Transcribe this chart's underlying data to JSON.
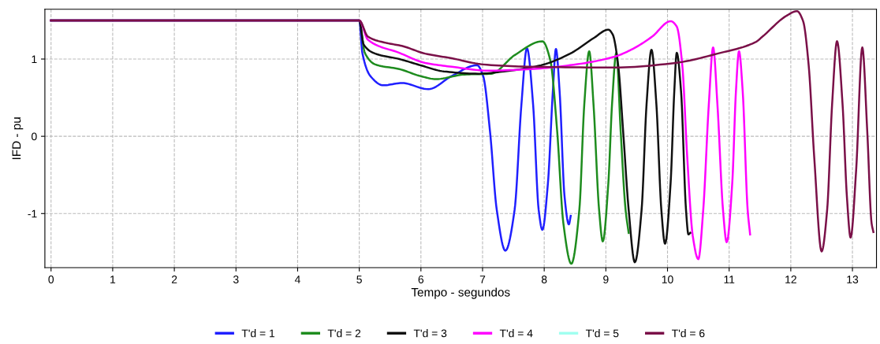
{
  "chart_data": {
    "type": "line",
    "xlabel": "Tempo - segundos",
    "ylabel": "IFD - pu",
    "xlim": [
      -0.1,
      13.39
    ],
    "ylim": [
      -1.7,
      1.644
    ],
    "xticks": [
      0,
      1,
      2,
      3,
      4,
      5,
      6,
      7,
      8,
      9,
      10,
      11,
      12,
      13
    ],
    "yticks": [
      -1,
      0,
      1
    ],
    "grid": true,
    "legend": "bottom",
    "line_style": "solid",
    "marker": "none",
    "series": [
      {
        "name": "T'd = 1",
        "color": "#1f1fff",
        "x": [
          0,
          5,
          5.05,
          5.18,
          5.39,
          5.69,
          6.12,
          6.5,
          6.91,
          7.01,
          7.12,
          7.23,
          7.37,
          7.52,
          7.63,
          7.72,
          7.82,
          7.91,
          7.97,
          8.06,
          8.14,
          8.19,
          8.25,
          8.33,
          8.4,
          8.43
        ],
        "values": [
          1.5,
          1.5,
          1.08,
          0.78,
          0.66,
          0.69,
          0.61,
          0.78,
          0.92,
          0.78,
          0.07,
          -0.95,
          -1.48,
          -0.95,
          0.41,
          1.14,
          0.41,
          -0.95,
          -1.21,
          -0.61,
          0.58,
          1.13,
          0.58,
          -0.78,
          -1.14,
          -1.03
        ]
      },
      {
        "name": "T'd = 2",
        "color": "#1e8c1e",
        "x": [
          0,
          5,
          5.09,
          5.26,
          5.65,
          5.99,
          6.24,
          6.71,
          7.14,
          7.52,
          7.97,
          8.1,
          8.21,
          8.31,
          8.44,
          8.57,
          8.65,
          8.73,
          8.8,
          8.89,
          8.95,
          9.04,
          9.1,
          9.17,
          9.24,
          9.32,
          9.37
        ],
        "values": [
          1.5,
          1.5,
          1.08,
          0.93,
          0.87,
          0.78,
          0.74,
          0.8,
          0.81,
          1.05,
          1.23,
          0.98,
          0.07,
          -1.12,
          -1.65,
          -0.95,
          0.41,
          1.1,
          0.41,
          -0.95,
          -1.36,
          -0.61,
          0.41,
          1.08,
          0.07,
          -0.95,
          -1.25
        ]
      },
      {
        "name": "T'd = 3",
        "color": "#111111",
        "x": [
          0,
          5,
          5.07,
          5.26,
          5.65,
          5.99,
          6.37,
          6.93,
          7.35,
          7.95,
          8.42,
          8.8,
          9.04,
          9.11,
          9.2,
          9.28,
          9.37,
          9.47,
          9.58,
          9.66,
          9.74,
          9.82,
          9.9,
          9.96,
          10.05,
          10.11,
          10.15,
          10.22,
          10.3,
          10.34,
          10.37
        ],
        "values": [
          1.5,
          1.5,
          1.19,
          1.07,
          1.0,
          0.92,
          0.84,
          0.81,
          0.84,
          0.92,
          1.07,
          1.27,
          1.38,
          1.32,
          0.92,
          0.07,
          -0.95,
          -1.63,
          -0.95,
          0.41,
          1.12,
          0.41,
          -0.95,
          -1.39,
          -0.61,
          0.58,
          1.08,
          0.58,
          -0.95,
          -1.27,
          -1.25
        ]
      },
      {
        "name": "T'd = 4",
        "color": "#ff00ff",
        "x": [
          0,
          5,
          5.14,
          5.65,
          6.07,
          6.5,
          7.1,
          7.78,
          8.42,
          9.14,
          9.41,
          9.75,
          10.05,
          10.15,
          10.24,
          10.32,
          10.41,
          10.5,
          10.58,
          10.67,
          10.74,
          10.81,
          10.9,
          10.96,
          11.05,
          11.11,
          11.16,
          11.22,
          11.3,
          11.34
        ],
        "values": [
          1.5,
          1.5,
          1.25,
          1.08,
          0.95,
          0.9,
          0.85,
          0.87,
          0.92,
          1.03,
          1.12,
          1.29,
          1.49,
          1.42,
          0.92,
          -0.27,
          -1.29,
          -1.59,
          -0.95,
          0.41,
          1.15,
          0.41,
          -0.95,
          -1.37,
          -0.61,
          0.58,
          1.1,
          0.58,
          -0.95,
          -1.27
        ]
      },
      {
        "name": "T'd = 5",
        "color": "#a0fff0"
      },
      {
        "name": "T'd = 6",
        "color": "#7a1048",
        "x": [
          0,
          5,
          5.14,
          5.43,
          5.69,
          6.07,
          6.5,
          7.01,
          7.78,
          9.14,
          10.13,
          10.81,
          11.43,
          11.54,
          11.93,
          12.1,
          12.2,
          12.29,
          12.38,
          12.5,
          12.59,
          12.67,
          12.75,
          12.84,
          12.91,
          12.97,
          13.06,
          13.16,
          13.24,
          13.31,
          13.34
        ],
        "values": [
          1.5,
          1.5,
          1.29,
          1.21,
          1.17,
          1.07,
          1.01,
          0.93,
          0.9,
          0.89,
          0.95,
          1.07,
          1.22,
          1.29,
          1.56,
          1.62,
          1.49,
          0.92,
          -0.27,
          -1.49,
          -0.95,
          0.41,
          1.23,
          0.41,
          -0.78,
          -1.31,
          -0.44,
          1.15,
          0.07,
          -1.12,
          -1.24
        ]
      }
    ]
  }
}
